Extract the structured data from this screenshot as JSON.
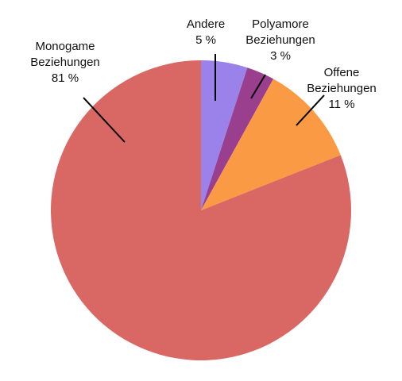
{
  "chart_data": {
    "type": "pie",
    "title": "",
    "slices": [
      {
        "name_lines": [
          "Andere"
        ],
        "value": 5,
        "value_label": "5 %",
        "color": "#9b82ea"
      },
      {
        "name_lines": [
          "Polyamore",
          "Beziehungen"
        ],
        "value": 3,
        "value_label": "3 %",
        "color": "#9a3e8e"
      },
      {
        "name_lines": [
          "Offene",
          "Beziehungen"
        ],
        "value": 11,
        "value_label": "11 %",
        "color": "#fb9a45"
      },
      {
        "name_lines": [
          "Monogame",
          "Beziehungen"
        ],
        "value": 81,
        "value_label": "81 %",
        "color": "#d96864"
      }
    ],
    "start": "12 o'clock",
    "direction": "clockwise",
    "legend": "none",
    "labels": "outside with leader lines"
  }
}
